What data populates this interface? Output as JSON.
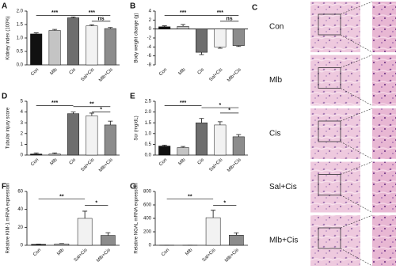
{
  "chart_data": [
    {
      "type": "bar",
      "panel": "A",
      "ylabel": "Kidney index (100%)",
      "categories": [
        "Con",
        "Mlb",
        "Cis",
        "Sal+Cis",
        "Mlb+Cis"
      ],
      "values": [
        1.15,
        1.28,
        1.75,
        1.45,
        1.35
      ],
      "errors": [
        0.04,
        0.04,
        0.03,
        0.04,
        0.04
      ],
      "colors": [
        "#111111",
        "#c4c4c4",
        "#6e6e6e",
        "#f2f2f2",
        "#8c8c8c"
      ],
      "ylim": [
        0,
        2
      ],
      "yticks": [
        {
          "value": 0,
          "label": "0.0"
        },
        0.5,
        {
          "value": 1,
          "label": "1.0"
        },
        1.5,
        {
          "value": 2,
          "label": "2.0"
        }
      ],
      "annotations": [
        "***",
        "***",
        "ns"
      ]
    },
    {
      "type": "bar",
      "panel": "B",
      "ylabel": "Body weight change (g)",
      "categories": [
        "Con",
        "Mlb",
        "Cis",
        "Sal+Cis",
        "Mlb+Cis"
      ],
      "values": [
        0.5,
        0.6,
        -5.2,
        -4.0,
        -3.7
      ],
      "errors": [
        0.2,
        0.4,
        0.5,
        0.3,
        0.2
      ],
      "colors": [
        "#111111",
        "#c4c4c4",
        "#6e6e6e",
        "#f2f2f2",
        "#8c8c8c"
      ],
      "ylim": [
        -8,
        4
      ],
      "yticks": [
        -8,
        -6,
        -4,
        -2,
        0,
        2,
        4
      ],
      "annotations": [
        "***",
        "***",
        "ns"
      ]
    },
    {
      "type": "bar",
      "panel": "D",
      "ylabel": "Tubular injury score",
      "categories": [
        "Con",
        "Mlb",
        "Cis",
        "Sal+Cis",
        "Mlb+Cis"
      ],
      "values": [
        0.1,
        0.1,
        3.85,
        3.65,
        2.8
      ],
      "errors": [
        0.1,
        0.1,
        0.15,
        0.25,
        0.35
      ],
      "colors": [
        "#111111",
        "#c4c4c4",
        "#6e6e6e",
        "#f2f2f2",
        "#8c8c8c"
      ],
      "ylim": [
        0,
        5
      ],
      "yticks": [
        0,
        1,
        2,
        3,
        4,
        5
      ],
      "annotations": [
        "***",
        "**",
        "*"
      ]
    },
    {
      "type": "bar",
      "panel": "E",
      "ylabel": "Scr (mg/dL)",
      "categories": [
        "Con",
        "Mlb",
        "Cis",
        "Sal+Cis",
        "Mlb+Cis"
      ],
      "values": [
        0.42,
        0.35,
        1.5,
        1.4,
        0.85
      ],
      "errors": [
        0.04,
        0.05,
        0.2,
        0.15,
        0.1
      ],
      "colors": [
        "#111111",
        "#c4c4c4",
        "#6e6e6e",
        "#f2f2f2",
        "#8c8c8c"
      ],
      "ylim": [
        0,
        2.5
      ],
      "yticks": [
        {
          "value": 0,
          "label": "0.0"
        },
        0.5,
        {
          "value": 1,
          "label": "1.0"
        },
        1.5,
        {
          "value": 2,
          "label": "2.0"
        },
        2.5
      ],
      "annotations": [
        "***",
        "*",
        "*"
      ]
    },
    {
      "type": "bar",
      "panel": "F",
      "ylabel": "Relative KIM-1 mRNA expression",
      "categories": [
        "Con",
        "Mlb",
        "Sal+Cis",
        "Mlb+Cis"
      ],
      "values": [
        1,
        1.5,
        30,
        11
      ],
      "errors": [
        0.2,
        0.3,
        8,
        3
      ],
      "colors": [
        "#111111",
        "#c4c4c4",
        "#f2f2f2",
        "#8c8c8c"
      ],
      "ylim": [
        0,
        60
      ],
      "yticks": [
        0,
        20,
        40,
        60
      ],
      "annotations": [
        "**",
        "*"
      ]
    },
    {
      "type": "bar",
      "panel": "G",
      "ylabel": "Relative NGAL mRNA expression",
      "categories": [
        "Con",
        "Mlb",
        "Sal+Cis",
        "Mlb+Cis"
      ],
      "values": [
        1,
        1,
        410,
        150
      ],
      "errors": [
        0.5,
        0.5,
        110,
        35
      ],
      "colors": [
        "#111111",
        "#c4c4c4",
        "#f2f2f2",
        "#8c8c8c"
      ],
      "ylim": [
        0,
        800
      ],
      "yticks": [
        0,
        200,
        400,
        600,
        800
      ],
      "annotations": [
        "**",
        "*"
      ]
    }
  ],
  "panel_c": {
    "letter": "C",
    "rows": [
      "Con",
      "Mlb",
      "Cis",
      "Sal+Cis",
      "Mlb+Cis"
    ]
  }
}
